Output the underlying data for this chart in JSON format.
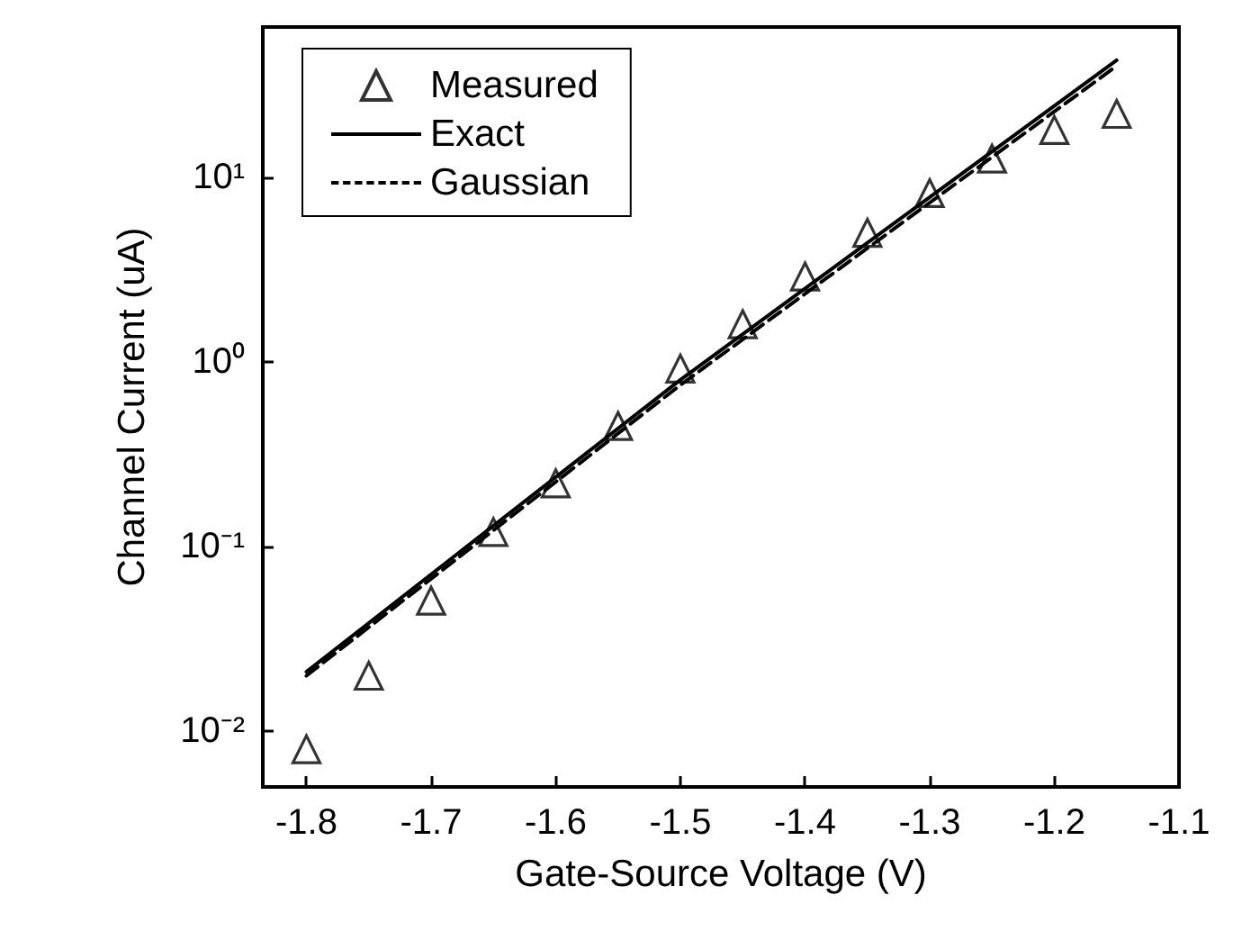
{
  "chart_data": {
    "type": "scatter",
    "xlabel": "Gate-Source Voltage (V)",
    "ylabel": "Channel Current (uA)",
    "log": "y",
    "legend": "top left",
    "grid": false,
    "xlim": [
      -1.835,
      -1.1
    ],
    "xticks": [
      -1.8,
      -1.7,
      -1.6,
      -1.5,
      -1.4,
      -1.3,
      -1.2,
      -1.1
    ],
    "ylim": [
      0.005,
      65
    ],
    "yticks": [
      {
        "value": 0.01,
        "label": "10⁻²"
      },
      {
        "value": 0.1,
        "label": "10⁻¹"
      },
      {
        "value": 1,
        "label": "10⁰"
      },
      {
        "value": 10,
        "label": "10¹"
      }
    ],
    "series": [
      {
        "name": "Measured",
        "type": "scatter",
        "marker": "triangle",
        "color": "#000000",
        "x": [
          -1.8,
          -1.75,
          -1.7,
          -1.65,
          -1.6,
          -1.55,
          -1.5,
          -1.45,
          -1.4,
          -1.35,
          -1.3,
          -1.25,
          -1.2,
          -1.15
        ],
        "values": [
          0.008,
          0.02,
          0.051,
          0.12,
          0.22,
          0.45,
          0.92,
          1.6,
          2.9,
          5.0,
          8.2,
          12.6,
          18,
          22
        ]
      },
      {
        "name": "Exact",
        "type": "line",
        "marker": "none",
        "line_style": "solid",
        "color": "#000000",
        "x": [
          -1.8,
          -1.5,
          -1.15
        ],
        "values": [
          0.021,
          0.8,
          43
        ]
      },
      {
        "name": "Gaussian",
        "type": "line",
        "marker": "none",
        "line_style": "dashed",
        "color": "#000000",
        "x": [
          -1.8,
          -1.5,
          -1.15
        ],
        "values": [
          0.02,
          0.75,
          40
        ]
      }
    ]
  }
}
